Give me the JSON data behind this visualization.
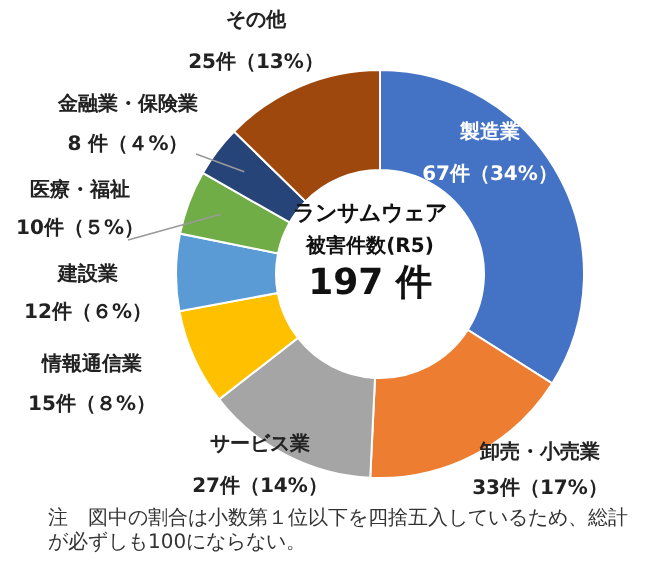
{
  "chart_data": {
    "type": "donut",
    "title": "ランサムウェア",
    "subtitle": "被害件数(R5)",
    "categories": [
      "製造業",
      "卸売・小売業",
      "サービス業",
      "情報通信業",
      "建設業",
      "医療・福祉",
      "金融業・保険業",
      "その他"
    ],
    "values": [
      67,
      33,
      27,
      15,
      12,
      10,
      8,
      25
    ],
    "value_labels": [
      "67件（34%）",
      "33件（17%）",
      "27件（14%）",
      "15件（８%）",
      "12件（６%）",
      "10件（５%）",
      "8 件（４%）",
      "25件（13%）"
    ],
    "colors": [
      "#4472c4",
      "#ed7d31",
      "#a5a5a5",
      "#ffc000",
      "#5b9bd5",
      "#70ad47",
      "#264478",
      "#9e480e"
    ],
    "annotations": [
      "197 件",
      "注　図中の割合は小数第１位以下を四捨五入しているため、総計が必ずしも100にならない。"
    ],
    "legend": false
  }
}
